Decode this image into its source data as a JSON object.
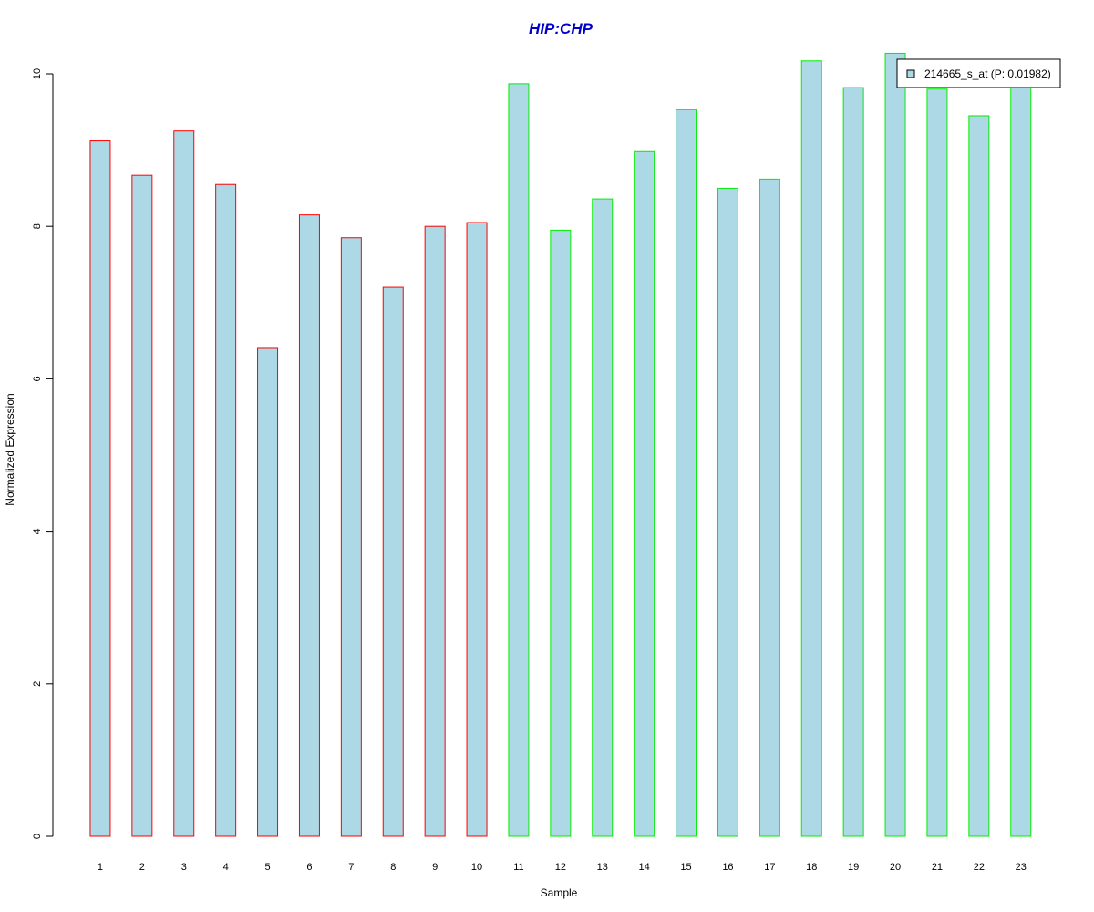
{
  "chart_data": {
    "type": "bar",
    "title": "HIP:CHP",
    "xlabel": "Sample",
    "ylabel": "Normalized Expression",
    "categories": [
      "1",
      "2",
      "3",
      "4",
      "5",
      "6",
      "7",
      "8",
      "9",
      "10",
      "11",
      "12",
      "13",
      "14",
      "15",
      "16",
      "17",
      "18",
      "19",
      "20",
      "21",
      "22",
      "23"
    ],
    "series": [
      {
        "name": "214665_s_at (P: 0.01982)",
        "values": [
          9.12,
          8.67,
          9.25,
          8.55,
          6.4,
          8.15,
          7.85,
          7.2,
          8.0,
          8.05,
          9.87,
          7.95,
          8.36,
          8.98,
          9.53,
          8.5,
          8.62,
          10.17,
          9.82,
          10.27,
          9.8,
          9.45,
          9.9
        ]
      }
    ],
    "bar_border_colors": [
      "#ff0000",
      "#ff0000",
      "#ff0000",
      "#ff0000",
      "#ff0000",
      "#ff0000",
      "#ff0000",
      "#ff0000",
      "#ff0000",
      "#ff0000",
      "#00ee00",
      "#00ee00",
      "#00ee00",
      "#00ee00",
      "#00ee00",
      "#00ee00",
      "#00ee00",
      "#00ee00",
      "#00ee00",
      "#00ee00",
      "#00ee00",
      "#00ee00",
      "#00ee00"
    ],
    "yticks": [
      0,
      2,
      4,
      6,
      8,
      10
    ],
    "ylim": [
      0,
      10.5
    ],
    "grid": false,
    "legend_position": "top-right",
    "colors": {
      "bar_fill": "#add8e6",
      "title": "#0000cc",
      "axis": "#000000"
    }
  }
}
